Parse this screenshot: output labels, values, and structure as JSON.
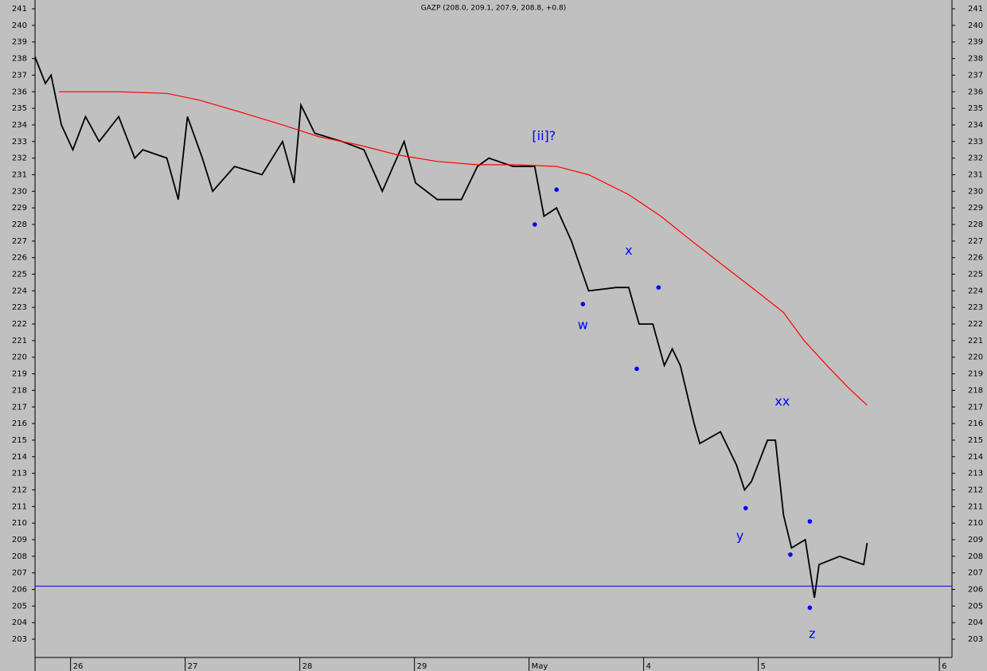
{
  "chart_data": {
    "type": "line",
    "title": "GAZP (208.0, 209.1, 207.9, 208.8, +0.8)",
    "xlim": [
      -0.31,
      7.69
    ],
    "ylim": [
      201.9,
      241.53
    ],
    "xticks": [
      {
        "value": 0,
        "label": "26"
      },
      {
        "value": 1,
        "label": "27"
      },
      {
        "value": 2,
        "label": "28"
      },
      {
        "value": 3,
        "label": "29"
      },
      {
        "value": 4,
        "label": "May"
      },
      {
        "value": 5,
        "label": "4"
      },
      {
        "value": 6,
        "label": "5"
      },
      {
        "value": 7.58,
        "label": "6"
      }
    ],
    "yticks": [
      203,
      204,
      205,
      206,
      207,
      208,
      209,
      210,
      211,
      212,
      213,
      214,
      215,
      216,
      217,
      218,
      219,
      220,
      221,
      222,
      223,
      224,
      225,
      226,
      227,
      228,
      229,
      230,
      231,
      232,
      233,
      234,
      235,
      236,
      237,
      238,
      239,
      240,
      241
    ],
    "series": [
      {
        "color": "#000000",
        "x": [
          -0.31,
          -0.22,
          -0.17,
          -0.08,
          0.02,
          0.13,
          0.25,
          0.42,
          0.56,
          0.63,
          0.84,
          0.94,
          1.02,
          1.15,
          1.24,
          1.43,
          1.67,
          1.85,
          1.95,
          2.01,
          2.13,
          2.37,
          2.56,
          2.72,
          2.91,
          3.01,
          3.2,
          3.41,
          3.55,
          3.65,
          3.86,
          4.05,
          4.13,
          4.24,
          4.37,
          4.47,
          4.52,
          4.76,
          4.87,
          4.96,
          5.08,
          5.18,
          5.25,
          5.32,
          5.44,
          5.49,
          5.67,
          5.81,
          5.88,
          5.94,
          6.08,
          6.15,
          6.22,
          6.29,
          6.41,
          6.49,
          6.53,
          6.71,
          6.92,
          6.95
        ],
        "values": [
          238.1,
          236.5,
          237,
          234,
          232.5,
          234.5,
          233,
          234.5,
          232,
          232.5,
          232,
          229.5,
          234.5,
          232,
          230,
          231.5,
          231,
          233,
          230.5,
          235.2,
          233.5,
          233,
          232.5,
          230,
          233,
          230.5,
          229.5,
          229.5,
          231.5,
          232,
          231.5,
          231.5,
          228.5,
          229,
          227,
          225,
          224,
          224.2,
          224.2,
          222,
          222,
          219.5,
          220.5,
          219.5,
          216,
          214.8,
          215.5,
          213.5,
          212,
          212.5,
          215,
          215,
          210.5,
          208.5,
          209,
          205.5,
          207.5,
          208,
          207.5,
          208.8
        ]
      },
      {
        "color": "#ff0000",
        "x": [
          -0.1,
          0.08,
          0.42,
          0.84,
          1.12,
          1.47,
          1.85,
          2.16,
          2.51,
          2.85,
          3.2,
          3.55,
          3.9,
          4.24,
          4.52,
          4.87,
          5.15,
          5.42,
          5.7,
          5.98,
          6.22,
          6.4,
          6.6,
          6.78,
          6.95
        ],
        "values": [
          236,
          236,
          236,
          235.9,
          235.5,
          234.8,
          234,
          233.3,
          232.8,
          232.2,
          231.8,
          231.6,
          231.6,
          231.5,
          231,
          229.8,
          228.5,
          227,
          225.5,
          224,
          222.7,
          221,
          219.5,
          218.2,
          217.1
        ]
      }
    ],
    "hline": {
      "value": 206.2,
      "color": "#0000ff"
    },
    "points": {
      "color": "#0000ff",
      "x": [
        4.05,
        4.24,
        4.47,
        4.94,
        5.13,
        5.89,
        6.28,
        6.45,
        6.45
      ],
      "values": [
        228,
        230.1,
        223.2,
        219.3,
        224.2,
        210.9,
        208.1,
        210.1,
        204.9
      ]
    },
    "annotations": [
      {
        "text": "[ii]?",
        "x": 4.13,
        "y": 233.3
      },
      {
        "text": "w",
        "x": 4.47,
        "y": 221.9
      },
      {
        "text": "x",
        "x": 4.87,
        "y": 226.4
      },
      {
        "text": "y",
        "x": 5.84,
        "y": 209.2
      },
      {
        "text": "xx",
        "x": 6.21,
        "y": 217.3
      },
      {
        "text": "z",
        "x": 6.47,
        "y": 203.3
      }
    ]
  }
}
